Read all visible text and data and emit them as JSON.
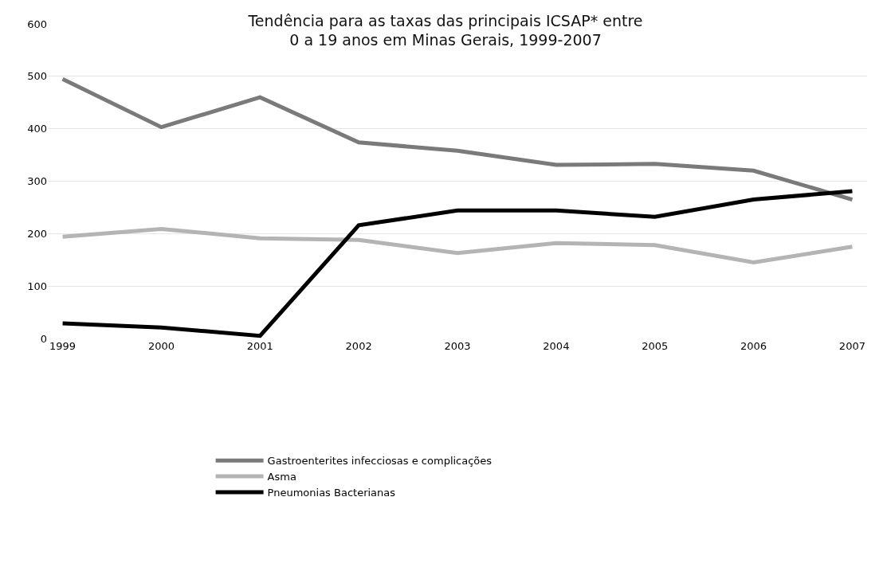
{
  "chart_data": {
    "type": "line",
    "title": "Tendência para as taxas das principais ICSAP* entre\n0 a 19 anos em Minas Gerais, 1999-2007",
    "categories": [
      "1999",
      "2000",
      "2001",
      "2002",
      "2003",
      "2004",
      "2005",
      "2006",
      "2007"
    ],
    "series": [
      {
        "name": "Gastroenterites infecciosas e complicações",
        "color": "#7a7a7a",
        "values": [
          495,
          403,
          460,
          374,
          358,
          331,
          333,
          320,
          265
        ]
      },
      {
        "name": "Asma",
        "color": "#b4b4b4",
        "values": [
          194,
          209,
          191,
          188,
          163,
          182,
          178,
          145,
          175
        ]
      },
      {
        "name": "Pneumonias Bacterianas",
        "color": "#000000",
        "values": [
          29,
          21,
          5,
          216,
          244,
          244,
          232,
          265,
          281
        ]
      }
    ],
    "ylim": [
      0,
      600
    ],
    "yticks": [
      0,
      100,
      200,
      300,
      400,
      500,
      600
    ],
    "grid": "y",
    "legend": "bottom",
    "marker": "none",
    "line_style": "solid"
  }
}
